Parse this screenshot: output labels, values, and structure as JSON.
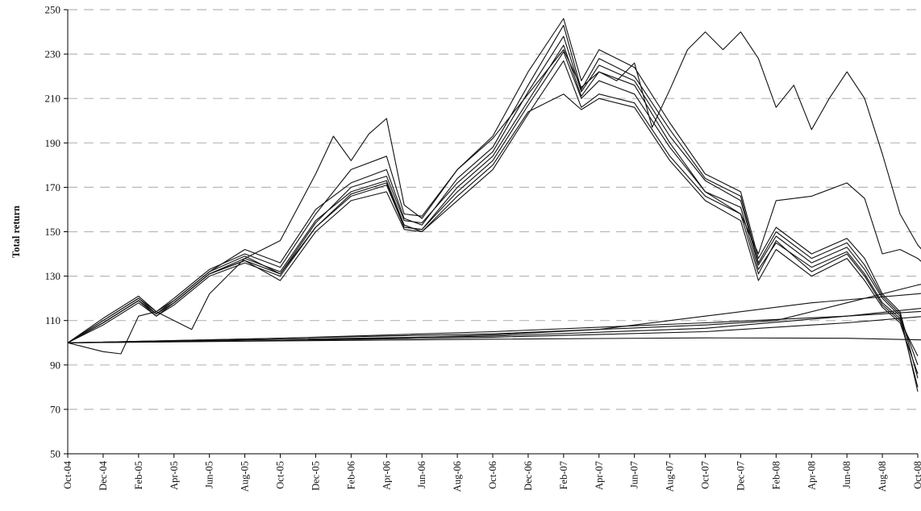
{
  "chart_data": {
    "type": "line",
    "title": "",
    "xlabel": "",
    "ylabel": "Total return",
    "ylim": [
      50,
      250
    ],
    "yticks": [
      50,
      70,
      90,
      110,
      130,
      150,
      170,
      190,
      210,
      230,
      250
    ],
    "grid": true,
    "legend": "none",
    "x_tick_labels": [
      "Oct-04",
      "Dec-04",
      "Feb-05",
      "Apr-05",
      "Jun-05",
      "Aug-05",
      "Oct-05",
      "Dec-05",
      "Feb-06",
      "Apr-06",
      "Jun-06",
      "Aug-06",
      "Oct-06",
      "Dec-06",
      "Feb-07",
      "Apr-07",
      "Jun-07",
      "Aug-07",
      "Oct-07",
      "Dec-07",
      "Feb-08",
      "Apr-08",
      "Jun-08",
      "Aug-08",
      "Oct-08"
    ],
    "x_unit": "months since Oct-04",
    "series": [
      {
        "values": [
          [
            0,
            100
          ],
          [
            2,
            109
          ],
          [
            4,
            119
          ],
          [
            5,
            112
          ],
          [
            6,
            118
          ],
          [
            8,
            131
          ],
          [
            10,
            137
          ],
          [
            12,
            128
          ],
          [
            14,
            150
          ],
          [
            16,
            164
          ],
          [
            18,
            168
          ],
          [
            19,
            151
          ],
          [
            20,
            150
          ],
          [
            22,
            164
          ],
          [
            24,
            178
          ],
          [
            26,
            203
          ],
          [
            28,
            227
          ],
          [
            29,
            206
          ],
          [
            30,
            212
          ],
          [
            32,
            208
          ],
          [
            34,
            184
          ],
          [
            36,
            166
          ],
          [
            38,
            158
          ],
          [
            39,
            131
          ],
          [
            40,
            146
          ],
          [
            42,
            132
          ],
          [
            44,
            140
          ],
          [
            45,
            130
          ],
          [
            46,
            117
          ],
          [
            47,
            110
          ],
          [
            48,
            94
          ]
        ]
      },
      {
        "values": [
          [
            0,
            100
          ],
          [
            2,
            110
          ],
          [
            4,
            120
          ],
          [
            5,
            113
          ],
          [
            6,
            119
          ],
          [
            8,
            132
          ],
          [
            10,
            139
          ],
          [
            12,
            131
          ],
          [
            14,
            154
          ],
          [
            16,
            170
          ],
          [
            18,
            175
          ],
          [
            19,
            155
          ],
          [
            20,
            154
          ],
          [
            22,
            172
          ],
          [
            24,
            186
          ],
          [
            26,
            213
          ],
          [
            28,
            238
          ],
          [
            29,
            213
          ],
          [
            30,
            225
          ],
          [
            32,
            218
          ],
          [
            34,
            193
          ],
          [
            36,
            173
          ],
          [
            38,
            164
          ],
          [
            39,
            135
          ],
          [
            40,
            148
          ],
          [
            42,
            136
          ],
          [
            44,
            143
          ],
          [
            45,
            133
          ],
          [
            46,
            120
          ],
          [
            47,
            112
          ],
          [
            48,
            90
          ]
        ]
      },
      {
        "values": [
          [
            0,
            100
          ],
          [
            2,
            111
          ],
          [
            4,
            121
          ],
          [
            5,
            114
          ],
          [
            6,
            120
          ],
          [
            8,
            133
          ],
          [
            10,
            140
          ],
          [
            12,
            134
          ],
          [
            14,
            158
          ],
          [
            16,
            178
          ],
          [
            18,
            184
          ],
          [
            19,
            158
          ],
          [
            20,
            157
          ],
          [
            22,
            178
          ],
          [
            24,
            193
          ],
          [
            26,
            222
          ],
          [
            28,
            246
          ],
          [
            29,
            218
          ],
          [
            30,
            232
          ],
          [
            32,
            224
          ],
          [
            34,
            199
          ],
          [
            36,
            176
          ],
          [
            38,
            168
          ],
          [
            39,
            138
          ],
          [
            40,
            152
          ],
          [
            42,
            140
          ],
          [
            44,
            147
          ],
          [
            45,
            138
          ],
          [
            46,
            122
          ],
          [
            47,
            114
          ],
          [
            48,
            84
          ]
        ]
      },
      {
        "values": [
          [
            0,
            100
          ],
          [
            2,
            108
          ],
          [
            4,
            118
          ],
          [
            5,
            112
          ],
          [
            6,
            117
          ],
          [
            8,
            130
          ],
          [
            10,
            136
          ],
          [
            12,
            130
          ],
          [
            14,
            152
          ],
          [
            16,
            166
          ],
          [
            18,
            171
          ],
          [
            19,
            152
          ],
          [
            20,
            151
          ],
          [
            22,
            168
          ],
          [
            24,
            182
          ],
          [
            26,
            207
          ],
          [
            28,
            231
          ],
          [
            29,
            210
          ],
          [
            30,
            218
          ],
          [
            32,
            212
          ],
          [
            34,
            188
          ],
          [
            36,
            168
          ],
          [
            38,
            161
          ],
          [
            39,
            133
          ],
          [
            40,
            145
          ],
          [
            42,
            134
          ],
          [
            44,
            141
          ],
          [
            45,
            131
          ],
          [
            46,
            118
          ],
          [
            47,
            111
          ],
          [
            48,
            80
          ]
        ]
      },
      {
        "values": [
          [
            0,
            100
          ],
          [
            2,
            110
          ],
          [
            4,
            120
          ],
          [
            5,
            114
          ],
          [
            6,
            119
          ],
          [
            8,
            132
          ],
          [
            10,
            142
          ],
          [
            12,
            136
          ],
          [
            14,
            160
          ],
          [
            16,
            172
          ],
          [
            18,
            178
          ],
          [
            19,
            156
          ],
          [
            20,
            153
          ],
          [
            22,
            174
          ],
          [
            24,
            188
          ],
          [
            26,
            216
          ],
          [
            28,
            243
          ],
          [
            29,
            214
          ],
          [
            30,
            228
          ],
          [
            32,
            220
          ],
          [
            34,
            196
          ],
          [
            36,
            174
          ],
          [
            38,
            166
          ],
          [
            39,
            136
          ],
          [
            40,
            150
          ],
          [
            42,
            138
          ],
          [
            44,
            145
          ],
          [
            45,
            135
          ],
          [
            46,
            121
          ],
          [
            47,
            113
          ],
          [
            48,
            78
          ]
        ]
      },
      {
        "values": [
          [
            0,
            100
          ],
          [
            2,
            109
          ],
          [
            4,
            119
          ],
          [
            5,
            113
          ],
          [
            6,
            118
          ],
          [
            8,
            131
          ],
          [
            10,
            138
          ],
          [
            12,
            132
          ],
          [
            14,
            155
          ],
          [
            16,
            168
          ],
          [
            18,
            173
          ],
          [
            19,
            153
          ],
          [
            20,
            150
          ],
          [
            22,
            166
          ],
          [
            24,
            180
          ],
          [
            26,
            204
          ],
          [
            28,
            212
          ],
          [
            29,
            205
          ],
          [
            30,
            210
          ],
          [
            32,
            206
          ],
          [
            34,
            182
          ],
          [
            36,
            164
          ],
          [
            38,
            155
          ],
          [
            39,
            128
          ],
          [
            40,
            142
          ],
          [
            42,
            130
          ],
          [
            44,
            138
          ],
          [
            45,
            128
          ],
          [
            46,
            116
          ],
          [
            47,
            109
          ],
          [
            48,
            86
          ]
        ]
      },
      {
        "values": [
          [
            0,
            100
          ],
          [
            2,
            96
          ],
          [
            3,
            95
          ],
          [
            4,
            112
          ],
          [
            5,
            114
          ],
          [
            6,
            110
          ],
          [
            7,
            106
          ],
          [
            8,
            122
          ],
          [
            10,
            138
          ],
          [
            12,
            146
          ],
          [
            14,
            176
          ],
          [
            15,
            193
          ],
          [
            16,
            182
          ],
          [
            17,
            194
          ],
          [
            18,
            201
          ],
          [
            19,
            162
          ],
          [
            20,
            156
          ],
          [
            22,
            178
          ],
          [
            24,
            192
          ],
          [
            26,
            212
          ],
          [
            28,
            232
          ],
          [
            29,
            215
          ],
          [
            30,
            222
          ],
          [
            31,
            218
          ],
          [
            32,
            226
          ],
          [
            33,
            197
          ],
          [
            34,
            214
          ],
          [
            35,
            232
          ],
          [
            36,
            240
          ],
          [
            37,
            232
          ],
          [
            38,
            240
          ],
          [
            39,
            228
          ],
          [
            40,
            206
          ],
          [
            41,
            216
          ],
          [
            42,
            196
          ],
          [
            43,
            210
          ],
          [
            44,
            222
          ],
          [
            45,
            210
          ],
          [
            46,
            185
          ],
          [
            47,
            158
          ],
          [
            48,
            144
          ],
          [
            49,
            135
          ]
        ]
      },
      {
        "values": [
          [
            0,
            100
          ],
          [
            2,
            109
          ],
          [
            4,
            119
          ],
          [
            5,
            113
          ],
          [
            6,
            118
          ],
          [
            8,
            131
          ],
          [
            10,
            137
          ],
          [
            12,
            131
          ],
          [
            14,
            152
          ],
          [
            16,
            167
          ],
          [
            18,
            172
          ],
          [
            19,
            152
          ],
          [
            20,
            151
          ],
          [
            22,
            170
          ],
          [
            24,
            184
          ],
          [
            26,
            209
          ],
          [
            28,
            234
          ],
          [
            29,
            211
          ],
          [
            30,
            222
          ],
          [
            32,
            216
          ],
          [
            34,
            190
          ],
          [
            36,
            168
          ],
          [
            38,
            158
          ],
          [
            39,
            140
          ],
          [
            40,
            164
          ],
          [
            42,
            166
          ],
          [
            44,
            172
          ],
          [
            45,
            165
          ],
          [
            46,
            140
          ],
          [
            47,
            142
          ],
          [
            48,
            138
          ],
          [
            49,
            131
          ]
        ]
      },
      {
        "values": [
          [
            0,
            100
          ],
          [
            6,
            100.5
          ],
          [
            12,
            101
          ],
          [
            18,
            102
          ],
          [
            24,
            103.5
          ],
          [
            30,
            106
          ],
          [
            36,
            112
          ],
          [
            42,
            118
          ],
          [
            48,
            122
          ],
          [
            50,
            124
          ]
        ]
      },
      {
        "values": [
          [
            0,
            100
          ],
          [
            12,
            102
          ],
          [
            24,
            104
          ],
          [
            36,
            108
          ],
          [
            40,
            110
          ],
          [
            44,
            118
          ],
          [
            48,
            126
          ],
          [
            50,
            129
          ]
        ]
      },
      {
        "values": [
          [
            0,
            100
          ],
          [
            12,
            101.5
          ],
          [
            24,
            103
          ],
          [
            36,
            106.5
          ],
          [
            44,
            112
          ],
          [
            50,
            117
          ]
        ]
      },
      {
        "values": [
          [
            0,
            100
          ],
          [
            12,
            101
          ],
          [
            24,
            102.5
          ],
          [
            36,
            105
          ],
          [
            44,
            109
          ],
          [
            50,
            113
          ]
        ]
      },
      {
        "values": [
          [
            0,
            100
          ],
          [
            12,
            102
          ],
          [
            24,
            105
          ],
          [
            36,
            109
          ],
          [
            44,
            112
          ],
          [
            50,
            115
          ]
        ]
      },
      {
        "values": [
          [
            0,
            100
          ],
          [
            12,
            100.8
          ],
          [
            24,
            101.6
          ],
          [
            36,
            102.2
          ],
          [
            44,
            102
          ],
          [
            50,
            101
          ]
        ]
      }
    ]
  }
}
